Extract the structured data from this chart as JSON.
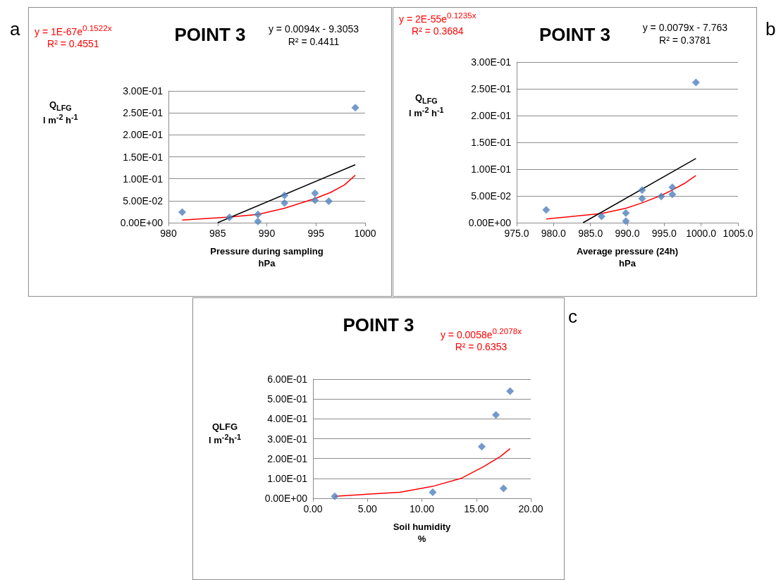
{
  "chart_data": [
    {
      "type": "scatter",
      "title": "POINT 3",
      "xlabel": "Pressure during sampling\nhPa",
      "ylabel": "Q$_{LFG}$\nl m$^{-2}$ h$^{-1}$",
      "annotations": [
        "a"
      ],
      "grid": "y",
      "marker": "diamond",
      "xlim": [
        980,
        1000
      ],
      "xticks": [
        980,
        985,
        990,
        995,
        1000
      ],
      "ylim": [
        0,
        0.3
      ],
      "yticks": [
        {
          "value": 0,
          "label": "0.00E+00"
        },
        {
          "value": 0.05,
          "label": "5.00E-02"
        },
        {
          "value": 0.1,
          "label": "1.00E-01"
        },
        {
          "value": 0.15,
          "label": "1.50E-01"
        },
        {
          "value": 0.2,
          "label": "2.00E-01"
        },
        {
          "value": 0.25,
          "label": "2.50E-01"
        },
        {
          "value": 0.3,
          "label": "3.00E-01"
        }
      ],
      "series": [
        {
          "color": "#4f81bd",
          "x": [
            981.4,
            986.2,
            989.1,
            989.1,
            991.8,
            991.8,
            994.9,
            994.9,
            996.3,
            999
          ],
          "values": [
            0.024,
            0.012,
            0.019,
            0.003,
            0.062,
            0.045,
            0.067,
            0.051,
            0.049,
            0.262
          ]
        },
        {
          "type": "line",
          "name": "y = 1E-67e$^{0.1522x}$\nR² = 0.4551",
          "color": "#ff0000",
          "marker": "none",
          "x": [
            981.4,
            986.2,
            989.1,
            991.8,
            994.9,
            996.5,
            997.9,
            999
          ],
          "values": [
            0.006,
            0.013,
            0.019,
            0.033,
            0.055,
            0.069,
            0.086,
            0.108
          ]
        },
        {
          "type": "line",
          "name": "y = 0.0094x - 9.3053\nR² = 0.4411",
          "color": "#000000",
          "marker": "none",
          "x": [
            985,
            999
          ],
          "values": [
            0,
            0.132
          ]
        }
      ]
    },
    {
      "type": "scatter",
      "title": "POINT 3",
      "xlabel": "Average pressure (24h)\nhPa",
      "ylabel": "Q$_{LFG}$\nl m$^{-2}$ h$^{-1}$",
      "annotations": [
        "b"
      ],
      "grid": "y",
      "marker": "diamond",
      "xlim": [
        975,
        1005
      ],
      "xticks": [
        {
          "value": 975,
          "label": "975.0"
        },
        {
          "value": 980,
          "label": "980.0"
        },
        {
          "value": 985,
          "label": "985.0"
        },
        {
          "value": 990,
          "label": "990.0"
        },
        {
          "value": 995,
          "label": "995.0"
        },
        {
          "value": 1000,
          "label": "1000.0"
        },
        {
          "value": 1005,
          "label": "1005.0"
        }
      ],
      "ylim": [
        0,
        0.3
      ],
      "yticks": [
        {
          "value": 0,
          "label": "0.00E+00"
        },
        {
          "value": 0.05,
          "label": "5.00E-02"
        },
        {
          "value": 0.1,
          "label": "1.00E-01"
        },
        {
          "value": 0.15,
          "label": "1.50E-01"
        },
        {
          "value": 0.2,
          "label": "2.00E-01"
        },
        {
          "value": 0.25,
          "label": "2.50E-01"
        },
        {
          "value": 0.3,
          "label": "3.00E-01"
        }
      ],
      "series": [
        {
          "color": "#4f81bd",
          "x": [
            979,
            986.5,
            989.8,
            989.8,
            992,
            992,
            994.6,
            996.1,
            996.1,
            999.3
          ],
          "values": [
            0.024,
            0.012,
            0.018,
            0.003,
            0.061,
            0.045,
            0.049,
            0.066,
            0.053,
            0.262
          ]
        },
        {
          "type": "line",
          "name": "y = 2E-55e$^{0.1235x}$\nR² = 0.3684",
          "color": "#ff0000",
          "marker": "none",
          "x": [
            979,
            986.5,
            989.8,
            992,
            994.6,
            996.1,
            997.7,
            999.3
          ],
          "values": [
            0.007,
            0.017,
            0.027,
            0.037,
            0.051,
            0.061,
            0.073,
            0.088
          ]
        },
        {
          "type": "line",
          "name": "y = 0.0079x - 7.763\nR² = 0.3781",
          "color": "#000000",
          "marker": "none",
          "x": [
            984,
            999.3
          ],
          "values": [
            0,
            0.12
          ]
        }
      ]
    },
    {
      "type": "scatter",
      "title": "POINT 3",
      "xlabel": "Soil humidity\n%",
      "ylabel": "QLFG\nl m$^{-2}$h$^{-1}$",
      "annotations": [
        "c"
      ],
      "grid": "y",
      "marker": "diamond",
      "xlim": [
        0,
        20
      ],
      "xticks": [
        {
          "value": 0,
          "label": "0.00"
        },
        {
          "value": 5,
          "label": "5.00"
        },
        {
          "value": 10,
          "label": "10.00"
        },
        {
          "value": 15,
          "label": "15.00"
        },
        {
          "value": 20,
          "label": "20.00"
        }
      ],
      "ylim": [
        0,
        0.6
      ],
      "yticks": [
        {
          "value": 0,
          "label": "0.00E+00"
        },
        {
          "value": 0.1,
          "label": "1.00E-01"
        },
        {
          "value": 0.2,
          "label": "2.00E-01"
        },
        {
          "value": 0.3,
          "label": "3.00E-01"
        },
        {
          "value": 0.4,
          "label": "4.00E-01"
        },
        {
          "value": 0.5,
          "label": "5.00E-01"
        },
        {
          "value": 0.6,
          "label": "6.00E-01"
        }
      ],
      "series": [
        {
          "color": "#4f81bd",
          "x": [
            2,
            11,
            15.5,
            16.8,
            17.5,
            18.1
          ],
          "values": [
            0.01,
            0.03,
            0.26,
            0.42,
            0.05,
            0.54
          ]
        },
        {
          "type": "line",
          "name": "y = 0.0058e$^{0.2078x}$\nR² = 0.6353",
          "color": "#ff0000",
          "marker": "none",
          "x": [
            2,
            5,
            8,
            11,
            13.6,
            15.7,
            17.2,
            18.1
          ],
          "values": [
            0.01,
            0.02,
            0.03,
            0.06,
            0.1,
            0.16,
            0.21,
            0.25
          ]
        }
      ]
    }
  ]
}
